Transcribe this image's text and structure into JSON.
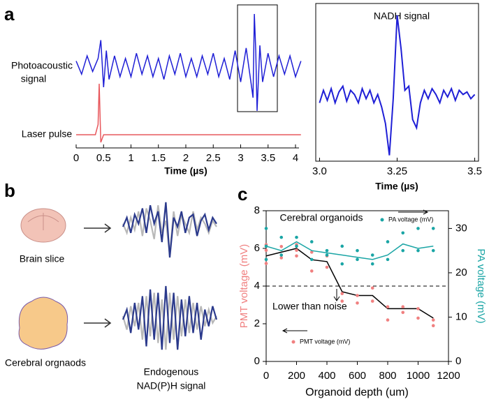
{
  "panels": {
    "a": "a",
    "b": "b",
    "c": "c"
  },
  "chart_data": [
    {
      "type": "trace",
      "signal_label": [
        "Photoacoustic",
        "signal"
      ],
      "pulse_label": "Laser pulse",
      "xlabel": "Time (µs)",
      "xlim": [
        0,
        4.2
      ],
      "xticks": [
        0,
        0.5,
        1,
        1.5,
        2,
        2.5,
        3,
        3.5,
        4
      ],
      "series": [
        {
          "color": "#1f1fd6",
          "ylim": [
            -1,
            1
          ],
          "x": [
            0,
            0.1,
            0.2,
            0.3,
            0.4,
            0.45,
            0.5,
            0.55,
            0.6,
            0.7,
            0.8,
            0.9,
            1.0,
            1.1,
            1.2,
            1.3,
            1.4,
            1.5,
            1.6,
            1.7,
            1.8,
            1.9,
            2.0,
            2.1,
            2.2,
            2.3,
            2.4,
            2.5,
            2.6,
            2.7,
            2.8,
            2.9,
            3.0,
            3.1,
            3.2,
            3.225,
            3.25,
            3.275,
            3.3,
            3.35,
            3.4,
            3.5,
            3.6,
            3.7,
            3.8,
            3.9,
            4.0,
            4.1
          ],
          "values": [
            0.1,
            -0.15,
            0.2,
            -0.1,
            0.15,
            0.5,
            -0.4,
            0.3,
            -0.25,
            0.2,
            -0.2,
            0.15,
            -0.2,
            0.25,
            -0.15,
            0.2,
            -0.2,
            0.15,
            -0.25,
            0.2,
            -0.15,
            0.25,
            -0.2,
            0.15,
            -0.2,
            0.2,
            -0.15,
            0.25,
            -0.2,
            0.15,
            -0.25,
            0.3,
            -0.3,
            0.35,
            -0.4,
            -0.6,
            1.0,
            0.3,
            -0.85,
            0.4,
            -0.3,
            0.25,
            -0.2,
            0.2,
            -0.15,
            0.2,
            -0.2,
            0.1
          ]
        },
        {
          "color": "#e8575c",
          "ylim": [
            -0.3,
            1
          ],
          "x": [
            0,
            0.35,
            0.4,
            0.42,
            0.45,
            0.5,
            4.1
          ],
          "values": [
            0,
            0,
            0.2,
            1,
            -0.15,
            0,
            0
          ]
        }
      ]
    },
    {
      "type": "zoom",
      "title": "NADH signal",
      "xlabel": "Time (µs)",
      "color": "#1f1fd6",
      "xlim": [
        2.99,
        3.51
      ],
      "ylim": [
        -0.7,
        1.1
      ],
      "xticks": [
        {
          "value": 3,
          "label": "3.0"
        },
        3.25,
        3.5
      ],
      "values": [
        -0.05,
        0.1,
        -0.02,
        0.12,
        -0.05,
        0.08,
        0.15,
        -0.03,
        0.1,
        0.05,
        -0.05,
        0.12,
        0.0,
        0.1,
        -0.05,
        0.05,
        -0.1,
        -0.3,
        -0.68,
        0.0,
        1.0,
        0.6,
        0.1,
        0.15,
        -0.25,
        -0.35,
        -0.05,
        0.1,
        0.0,
        0.12,
        0.05,
        -0.05,
        0.1,
        0.02,
        0.12,
        -0.02,
        0.1,
        0.05,
        0.08,
        0.0,
        0.05
      ],
      "x0": 3.0,
      "dx": 0.0125
    },
    {
      "type": "waveforms",
      "labels": {
        "slice": "Brain slice",
        "organoid": "Cerebral orgnaods",
        "signal": [
          "Endogenous",
          "NAD(P)H signal"
        ]
      },
      "ylim": [
        -1,
        1
      ],
      "slice": [
        {
          "color": "#b8b8b8",
          "values": [
            0.1,
            -0.2,
            0.3,
            -0.1,
            0.5,
            -0.3,
            0.6,
            0.2,
            -0.4,
            0.7,
            -0.2,
            0.2,
            -0.9,
            0.5,
            -0.3,
            0.4,
            0.1,
            -0.2,
            0.5,
            -0.1,
            0.3,
            0.1,
            -0.2,
            0.2,
            0.0
          ]
        },
        {
          "color": "#2b3a8c",
          "values": [
            0.0,
            0.3,
            -0.2,
            0.4,
            0.1,
            0.6,
            -0.2,
            0.7,
            0.1,
            0.5,
            -0.5,
            0.8,
            -1.0,
            0.3,
            0.0,
            0.5,
            -0.2,
            0.3,
            0.4,
            -0.3,
            0.2,
            0.4,
            -0.1,
            0.3,
            0.1
          ]
        }
      ],
      "organoid": [
        {
          "color": "#b8b8b8",
          "values": [
            0.1,
            -0.3,
            0.4,
            -0.2,
            0.5,
            -0.6,
            0.7,
            -0.5,
            0.8,
            -0.7,
            0.6,
            -0.9,
            0.8,
            -0.6,
            0.7,
            -0.5,
            0.6,
            -0.4,
            0.5,
            -0.3,
            0.4,
            -0.2,
            0.3,
            -0.1,
            0.1
          ]
        },
        {
          "color": "#2b3a8c",
          "values": [
            0.0,
            0.3,
            -0.4,
            0.5,
            -0.3,
            0.7,
            -0.8,
            0.9,
            -0.6,
            0.8,
            -0.9,
            1.0,
            -0.7,
            0.8,
            -0.9,
            0.6,
            -0.5,
            0.7,
            -0.4,
            0.5,
            -0.6,
            0.3,
            -0.2,
            0.4,
            0.0
          ]
        }
      ]
    },
    {
      "type": "scatter-line",
      "title": "Cerebral organoids",
      "xlabel": "Organoid depth (um)",
      "ylabel": "PMT voltage (mV)",
      "y2label": "PA voltage (mV)",
      "xlim": [
        0,
        1200
      ],
      "xticks": [
        0,
        200,
        400,
        600,
        800,
        1000,
        1200
      ],
      "ylim": [
        0,
        8
      ],
      "yticks": [
        0,
        2,
        4,
        6,
        8
      ],
      "y2lim": [
        0,
        34
      ],
      "y2ticks": [
        0,
        10,
        20,
        30
      ],
      "threshold": 4,
      "annotation": "Lower than noise",
      "series": [
        {
          "name": "PMT voltage (mV)",
          "color": "#f08080",
          "line_color": "#000000",
          "x": [
            0,
            100,
            200,
            300,
            400,
            500,
            600,
            700,
            800,
            900,
            1000,
            1100
          ],
          "values": [
            5.6,
            5.8,
            6.0,
            5.4,
            5.3,
            3.7,
            3.5,
            3.5,
            2.8,
            2.8,
            2.8,
            2.3
          ],
          "points_x": [
            0,
            0,
            0,
            100,
            100,
            200,
            200,
            200,
            300,
            300,
            400,
            400,
            500,
            500,
            600,
            600,
            700,
            700,
            800,
            800,
            900,
            900,
            1000,
            1000,
            1100,
            1100
          ],
          "points": [
            5.2,
            5.9,
            6.2,
            5.5,
            6.1,
            5.6,
            5.9,
            6.2,
            4.8,
            5.8,
            5.0,
            5.6,
            3.6,
            3.2,
            3.1,
            3.5,
            3.9,
            3.2,
            2.9,
            2.2,
            2.6,
            2.9,
            2.8,
            2.3,
            2.2,
            1.9
          ]
        },
        {
          "name": "PA voltage (mV)",
          "color": "#1aa5a5",
          "axis": "y2",
          "x": [
            0,
            100,
            200,
            300,
            400,
            500,
            600,
            700,
            800,
            900,
            1000,
            1100
          ],
          "values": [
            26,
            25,
            27,
            25,
            24.5,
            24,
            23.5,
            23,
            24,
            26.5,
            25.5,
            26
          ],
          "points_x": [
            0,
            0,
            0,
            100,
            100,
            200,
            200,
            300,
            300,
            400,
            400,
            500,
            500,
            600,
            600,
            700,
            700,
            800,
            800,
            900,
            900,
            1000,
            1000,
            1100,
            1100
          ],
          "points": [
            30,
            26,
            23,
            28,
            24,
            28,
            26,
            27,
            23,
            25,
            24,
            26,
            22,
            25,
            23,
            22,
            24,
            27,
            23,
            29,
            25,
            30,
            25,
            30,
            25
          ]
        }
      ]
    }
  ]
}
